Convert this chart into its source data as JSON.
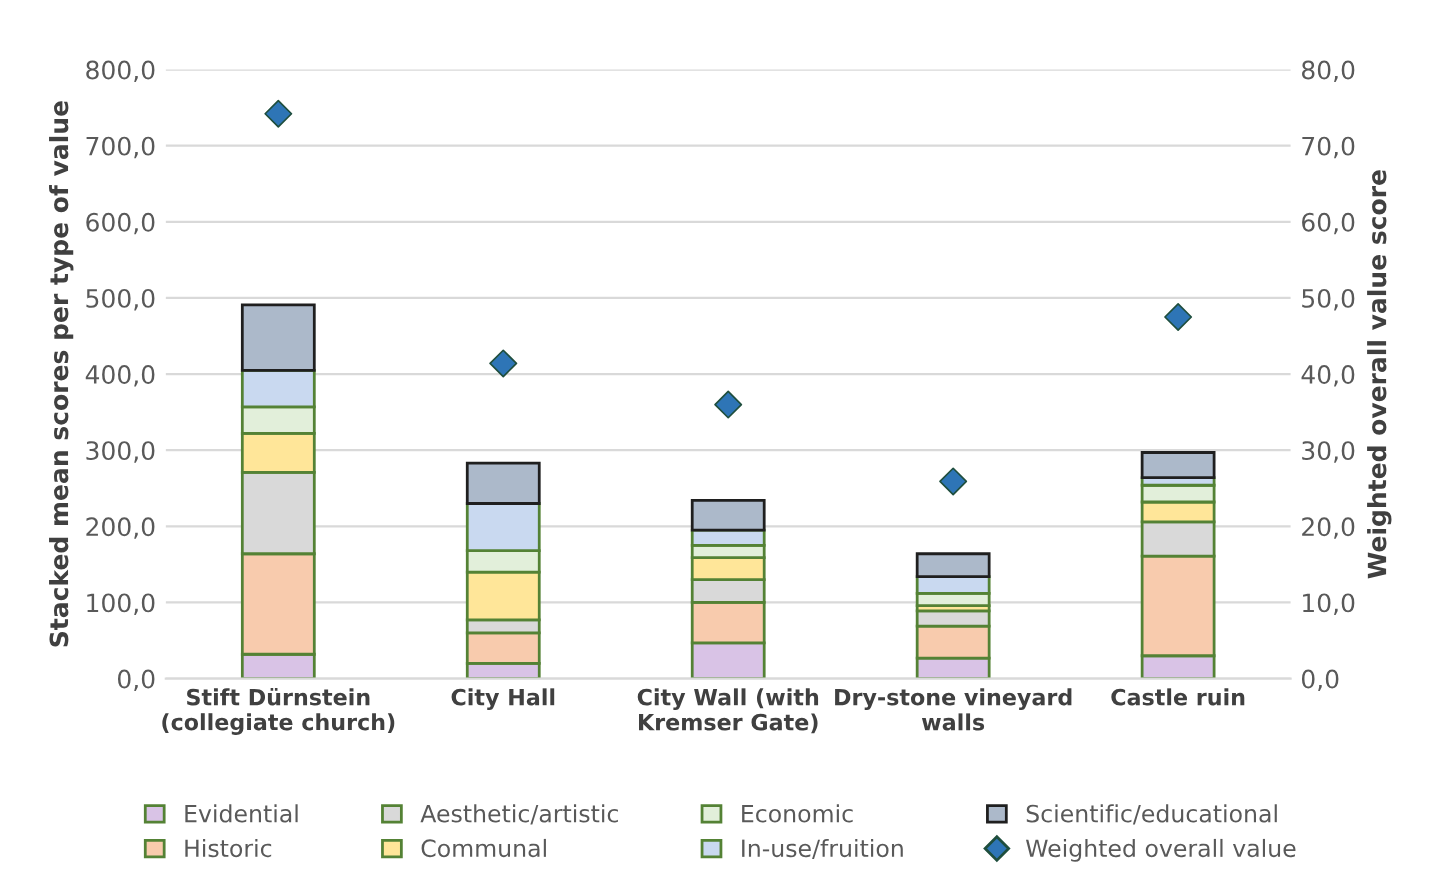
{
  "chart_data": {
    "type": "bar",
    "stacked": true,
    "categories": [
      "Stift Dürnstein\n(collegiate church)",
      "City Hall",
      "City Wall (with\nKremser Gate)",
      "Dry-stone vineyard\nwalls",
      "Castle ruin"
    ],
    "ylabel": "Stacked mean scores per type of value",
    "y2label": "Weighted overall value score",
    "ylim": [
      0,
      800
    ],
    "yticks": [
      {
        "value": 0,
        "label": "0,0"
      },
      {
        "value": 100,
        "label": "100,0"
      },
      {
        "value": 200,
        "label": "200,0"
      },
      {
        "value": 300,
        "label": "300,0"
      },
      {
        "value": 400,
        "label": "400,0"
      },
      {
        "value": 500,
        "label": "500,0"
      },
      {
        "value": 600,
        "label": "600,0"
      },
      {
        "value": 700,
        "label": "700,0"
      },
      {
        "value": 800,
        "label": "800,0"
      }
    ],
    "y2lim": [
      0,
      80
    ],
    "y2ticks": [
      {
        "value": 0,
        "label": "0,0"
      },
      {
        "value": 10,
        "label": "10,0"
      },
      {
        "value": 20,
        "label": "20,0"
      },
      {
        "value": 30,
        "label": "30,0"
      },
      {
        "value": 40,
        "label": "40,0"
      },
      {
        "value": 50,
        "label": "50,0"
      },
      {
        "value": 60,
        "label": "60,0"
      },
      {
        "value": 70,
        "label": "70,0"
      },
      {
        "value": 80,
        "label": "80,0"
      }
    ],
    "grid": "y",
    "legend": "bottom",
    "series": [
      {
        "name": "Evidential",
        "color": "#d9c3e6",
        "values": [
          32,
          20,
          47,
          27,
          30
        ]
      },
      {
        "name": "Historic",
        "color": "#f8cbad",
        "values": [
          132,
          40,
          53,
          42,
          131
        ]
      },
      {
        "name": "Aesthetic/artistic",
        "color": "#d9d9d9",
        "values": [
          107,
          17,
          30,
          20,
          45
        ]
      },
      {
        "name": "Communal",
        "color": "#ffe699",
        "values": [
          51,
          63,
          29,
          7,
          26
        ]
      },
      {
        "name": "Economic",
        "color": "#e2efda",
        "values": [
          35,
          28,
          16,
          16,
          22
        ]
      },
      {
        "name": "In-use/fruition",
        "color": "#c9d9f0",
        "values": [
          48,
          62,
          20,
          22,
          10
        ]
      },
      {
        "name": "Scientific/educational",
        "color": "#acb9ca",
        "values": [
          86,
          53,
          39,
          30,
          33
        ]
      },
      {
        "name": "Weighted overall value",
        "type": "scatter",
        "axis": "y2",
        "marker": "diamond",
        "color": "#2e75b6",
        "values": [
          74.2,
          41.4,
          36.0,
          25.9,
          47.5
        ]
      }
    ]
  }
}
